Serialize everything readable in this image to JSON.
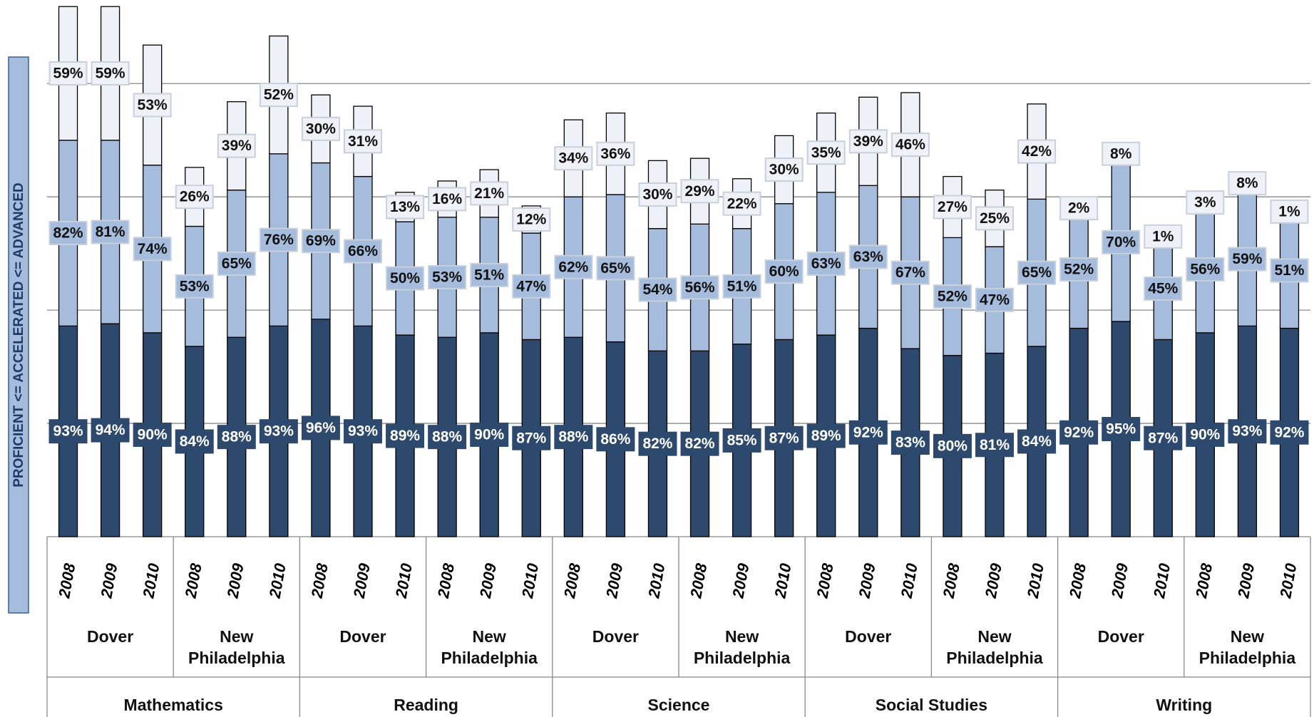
{
  "chart_data": {
    "type": "stacked-bar",
    "y_label": "PROFICIENT <= ACCELERATED <= ADVANCED",
    "categories": [
      "2008",
      "2009",
      "2010",
      "2008",
      "2009",
      "2010",
      "2008",
      "2009",
      "2010",
      "2008",
      "2009",
      "2010",
      "2008",
      "2009",
      "2010",
      "2008",
      "2009",
      "2010",
      "2008",
      "2009",
      "2010",
      "2008",
      "2009",
      "2010",
      "2008",
      "2009",
      "2010",
      "2008",
      "2009",
      "2010"
    ],
    "districts": [
      "Dover",
      "New Philadelphia",
      "Dover",
      "New Philadelphia",
      "Dover",
      "New Philadelphia",
      "Dover",
      "New Philadelphia",
      "Dover",
      "New Philadelphia"
    ],
    "subjects": [
      "Mathematics",
      "Reading",
      "Science",
      "Social Studies",
      "Writing"
    ],
    "series": [
      {
        "color": "#2d4a6e",
        "label_color": "#ffffff",
        "values": [
          93,
          94,
          90,
          84,
          88,
          93,
          96,
          93,
          89,
          88,
          90,
          87,
          88,
          86,
          82,
          82,
          85,
          87,
          89,
          92,
          83,
          80,
          81,
          84,
          92,
          95,
          87,
          90,
          93,
          92
        ],
        "value_labels": [
          "93%",
          "94%",
          "90%",
          "84%",
          "88%",
          "93%",
          "96%",
          "93%",
          "89%",
          "88%",
          "90%",
          "87%",
          "88%",
          "86%",
          "82%",
          "82%",
          "85%",
          "87%",
          "89%",
          "92%",
          "83%",
          "80%",
          "81%",
          "84%",
          "92%",
          "95%",
          "87%",
          "90%",
          "93%",
          "92%"
        ]
      },
      {
        "color": "#a5bcdc",
        "label_color": "#111111",
        "values": [
          82,
          81,
          74,
          53,
          65,
          76,
          69,
          66,
          50,
          53,
          51,
          47,
          62,
          65,
          54,
          56,
          51,
          60,
          63,
          63,
          67,
          52,
          47,
          65,
          52,
          70,
          45,
          56,
          59,
          51
        ],
        "value_labels": [
          "82%",
          "81%",
          "74%",
          "53%",
          "65%",
          "76%",
          "69%",
          "66%",
          "50%",
          "53%",
          "51%",
          "47%",
          "62%",
          "65%",
          "54%",
          "56%",
          "51%",
          "60%",
          "63%",
          "63%",
          "67%",
          "52%",
          "47%",
          "65%",
          "52%",
          "70%",
          "45%",
          "56%",
          "59%",
          "51%"
        ]
      },
      {
        "color": "#eef2f8",
        "label_color": "#111111",
        "values": [
          59,
          59,
          53,
          26,
          39,
          52,
          30,
          31,
          13,
          16,
          21,
          12,
          34,
          36,
          30,
          29,
          22,
          30,
          35,
          39,
          46,
          27,
          25,
          42,
          2,
          8,
          1,
          3,
          8,
          1
        ],
        "value_labels": [
          "59%",
          "59%",
          "53%",
          "26%",
          "39%",
          "52%",
          "30%",
          "31%",
          "13%",
          "16%",
          "21%",
          "12%",
          "34%",
          "36%",
          "30%",
          "29%",
          "22%",
          "30%",
          "35%",
          "39%",
          "46%",
          "27%",
          "25%",
          "42%",
          "2%",
          "8%",
          "1%",
          "3%",
          "8%",
          "1%"
        ]
      }
    ],
    "ylim": [
      0,
      235
    ],
    "yticks": [
      0,
      50,
      100,
      150,
      200
    ],
    "grid": true
  }
}
